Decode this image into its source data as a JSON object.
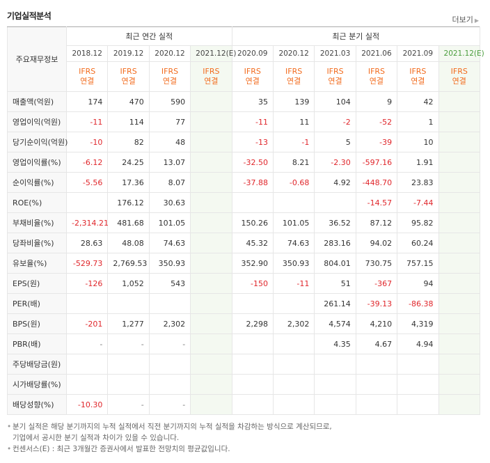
{
  "header": {
    "title": "기업실적분석",
    "more": "더보기"
  },
  "table": {
    "corner": "주요재무정보",
    "groups": [
      {
        "title": "최근 연간 실적",
        "periods": [
          "2018.12",
          "2019.12",
          "2020.12",
          "2021.12(E)"
        ],
        "standards": [
          "IFRS\n연결",
          "IFRS\n연결",
          "IFRS\n연결",
          "IFRS\n연결"
        ]
      },
      {
        "title": "최근 분기 실적",
        "periods": [
          "2020.09",
          "2020.12",
          "2021.03",
          "2021.06",
          "2021.09",
          "2021.12(E)"
        ],
        "standards": [
          "IFRS\n연결",
          "IFRS\n연결",
          "IFRS\n연결",
          "IFRS\n연결",
          "IFRS\n연결",
          "IFRS\n연결"
        ]
      }
    ],
    "sections": [
      [
        {
          "label": "매출액(억원)",
          "values": [
            "174",
            "470",
            "590",
            null,
            "35",
            "139",
            "104",
            "9",
            "42",
            null
          ]
        },
        {
          "label": "영업이익(억원)",
          "values": [
            "-11",
            "114",
            "77",
            null,
            "-11",
            "11",
            "-2",
            "-52",
            "1",
            null
          ]
        },
        {
          "label": "당기순이익(억원)",
          "values": [
            "-10",
            "82",
            "48",
            null,
            "-13",
            "-1",
            "5",
            "-39",
            "10",
            null
          ]
        },
        {
          "label": "영업이익률(%)",
          "values": [
            "-6.12",
            "24.25",
            "13.07",
            null,
            "-32.50",
            "8.21",
            "-2.30",
            "-597.16",
            "1.91",
            null
          ]
        },
        {
          "label": "순이익률(%)",
          "values": [
            "-5.56",
            "17.36",
            "8.07",
            null,
            "-37.88",
            "-0.68",
            "4.92",
            "-448.70",
            "23.83",
            null
          ]
        },
        {
          "label": "ROE(%)",
          "values": [
            null,
            "176.12",
            "30.63",
            null,
            null,
            null,
            null,
            "-14.57",
            "-7.44",
            null
          ]
        }
      ],
      [
        {
          "label": "부채비율(%)",
          "values": [
            "-2,314.21",
            "481.68",
            "101.05",
            null,
            "150.26",
            "101.05",
            "36.52",
            "87.12",
            "95.82",
            null
          ]
        },
        {
          "label": "당좌비율(%)",
          "values": [
            "28.63",
            "48.08",
            "74.63",
            null,
            "45.32",
            "74.63",
            "283.16",
            "94.02",
            "60.24",
            null
          ]
        },
        {
          "label": "유보율(%)",
          "values": [
            "-529.73",
            "2,769.53",
            "350.93",
            null,
            "352.90",
            "350.93",
            "804.01",
            "730.75",
            "757.15",
            null
          ]
        }
      ],
      [
        {
          "label": "EPS(원)",
          "values": [
            "-126",
            "1,052",
            "543",
            null,
            "-150",
            "-11",
            "51",
            "-367",
            "94",
            null
          ]
        },
        {
          "label": "PER(배)",
          "values": [
            null,
            null,
            null,
            null,
            null,
            null,
            "261.14",
            "-39.13",
            "-86.38",
            null
          ]
        },
        {
          "label": "BPS(원)",
          "values": [
            "-201",
            "1,277",
            "2,302",
            null,
            "2,298",
            "2,302",
            "4,574",
            "4,210",
            "4,319",
            null
          ]
        },
        {
          "label": "PBR(배)",
          "values": [
            "-",
            "-",
            "-",
            null,
            null,
            null,
            "4.35",
            "4.67",
            "4.94",
            null
          ]
        }
      ],
      [
        {
          "label": "주당배당금(원)",
          "values": [
            null,
            null,
            null,
            null,
            null,
            null,
            null,
            null,
            null,
            null
          ]
        },
        {
          "label": "시가배당률(%)",
          "values": [
            null,
            null,
            null,
            null,
            null,
            null,
            null,
            null,
            null,
            null
          ]
        },
        {
          "label": "배당성향(%)",
          "values": [
            "-10.30",
            "-",
            "-",
            null,
            null,
            null,
            null,
            null,
            null,
            null
          ]
        }
      ]
    ]
  },
  "notes": [
    [
      "분기 실적은 해당 분기까지의 누적 실적에서 직전 분기까지의 누적 실적을 차감하는 방식으로 계산되므로,",
      "기업에서 공시한 분기 실적과 차이가 있을 수 있습니다."
    ],
    [
      "컨센서스(E) : 최근 3개월간 증권사에서 발표한 전망치의 평균값입니다."
    ]
  ]
}
